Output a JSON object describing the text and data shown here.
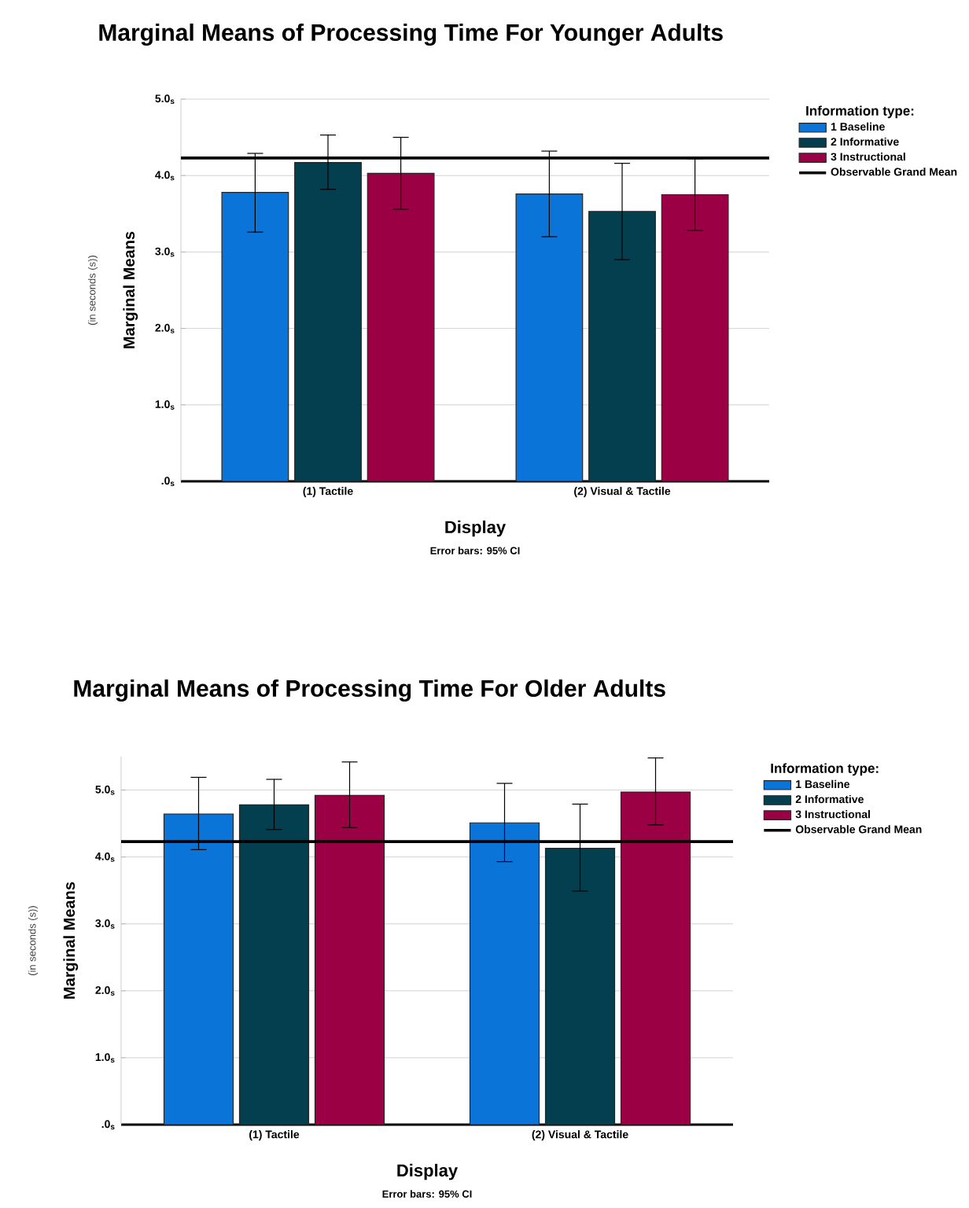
{
  "chart_data": [
    {
      "type": "bar",
      "title": "Marginal Means of Processing Time For Younger Adults",
      "xlabel": "Display",
      "ylabel": "Marginal Means",
      "legend_title": "Information type:",
      "annotations": [
        "(in seconds (s))",
        "Error bars: 95% CI"
      ],
      "categories": [
        "(1) Tactile",
        "(2) Visual & Tactile"
      ],
      "series": [
        {
          "name": "1 Baseline",
          "color": "#0a74d8",
          "values": [
            3.78,
            3.76
          ],
          "errors": [
            [
              3.26,
              4.29
            ],
            [
              3.2,
              4.32
            ]
          ]
        },
        {
          "name": "2 Informative",
          "color": "#033f4f",
          "values": [
            4.17,
            3.53
          ],
          "errors": [
            [
              3.82,
              4.53
            ],
            [
              2.9,
              4.16
            ]
          ]
        },
        {
          "name": "3 Instructional",
          "color": "#9b0045",
          "values": [
            4.03,
            3.75
          ],
          "errors": [
            [
              3.56,
              4.5
            ],
            [
              3.28,
              4.22
            ]
          ]
        }
      ],
      "ref_lines": [
        {
          "axis": "y",
          "value": 4.23,
          "label": "Observable Grand Mean",
          "color": "#000000"
        }
      ],
      "ylim": [
        0,
        5
      ],
      "yticks": [
        {
          "value": 0,
          "label": ".0$_{s}$"
        },
        {
          "value": 1,
          "label": "1.0$_{s}$"
        },
        {
          "value": 2,
          "label": "2.0$_{s}$"
        },
        {
          "value": 3,
          "label": "3.0$_{s}$"
        },
        {
          "value": 4,
          "label": "4.0$_{s}$"
        },
        {
          "value": 5,
          "label": "5.0$_{s}$"
        }
      ],
      "grid": "y",
      "legend": "right"
    },
    {
      "type": "bar",
      "title": "Marginal Means of Processing Time For Older Adults",
      "xlabel": "Display",
      "ylabel": "Marginal Means",
      "legend_title": "Information type:",
      "annotations": [
        "(in seconds (s))",
        "Error bars: 95% CI"
      ],
      "categories": [
        "(1) Tactile",
        "(2) Visual & Tactile"
      ],
      "series": [
        {
          "name": "1 Baseline",
          "color": "#0a74d8",
          "values": [
            4.64,
            4.51
          ],
          "errors": [
            [
              4.11,
              5.19
            ],
            [
              3.93,
              5.1
            ]
          ]
        },
        {
          "name": "2 Informative",
          "color": "#033f4f",
          "values": [
            4.78,
            4.13
          ],
          "errors": [
            [
              4.41,
              5.16
            ],
            [
              3.49,
              4.79
            ]
          ]
        },
        {
          "name": "3 Instructional",
          "color": "#9b0045",
          "values": [
            4.92,
            4.97
          ],
          "errors": [
            [
              4.44,
              5.42
            ],
            [
              4.48,
              5.48
            ]
          ]
        }
      ],
      "ref_lines": [
        {
          "axis": "y",
          "value": 4.23,
          "label": "Observable Grand Mean",
          "color": "#000000"
        }
      ],
      "ylim": [
        0,
        5.5
      ],
      "yticks": [
        {
          "value": 0,
          "label": ".0$_{s}$"
        },
        {
          "value": 1,
          "label": "1.0$_{s}$"
        },
        {
          "value": 2,
          "label": "2.0$_{s}$"
        },
        {
          "value": 3,
          "label": "3.0$_{s}$"
        },
        {
          "value": 4,
          "label": "4.0$_{s}$"
        },
        {
          "value": 5,
          "label": "5.0$_{s}$"
        }
      ],
      "grid": "y",
      "legend": "right"
    }
  ]
}
